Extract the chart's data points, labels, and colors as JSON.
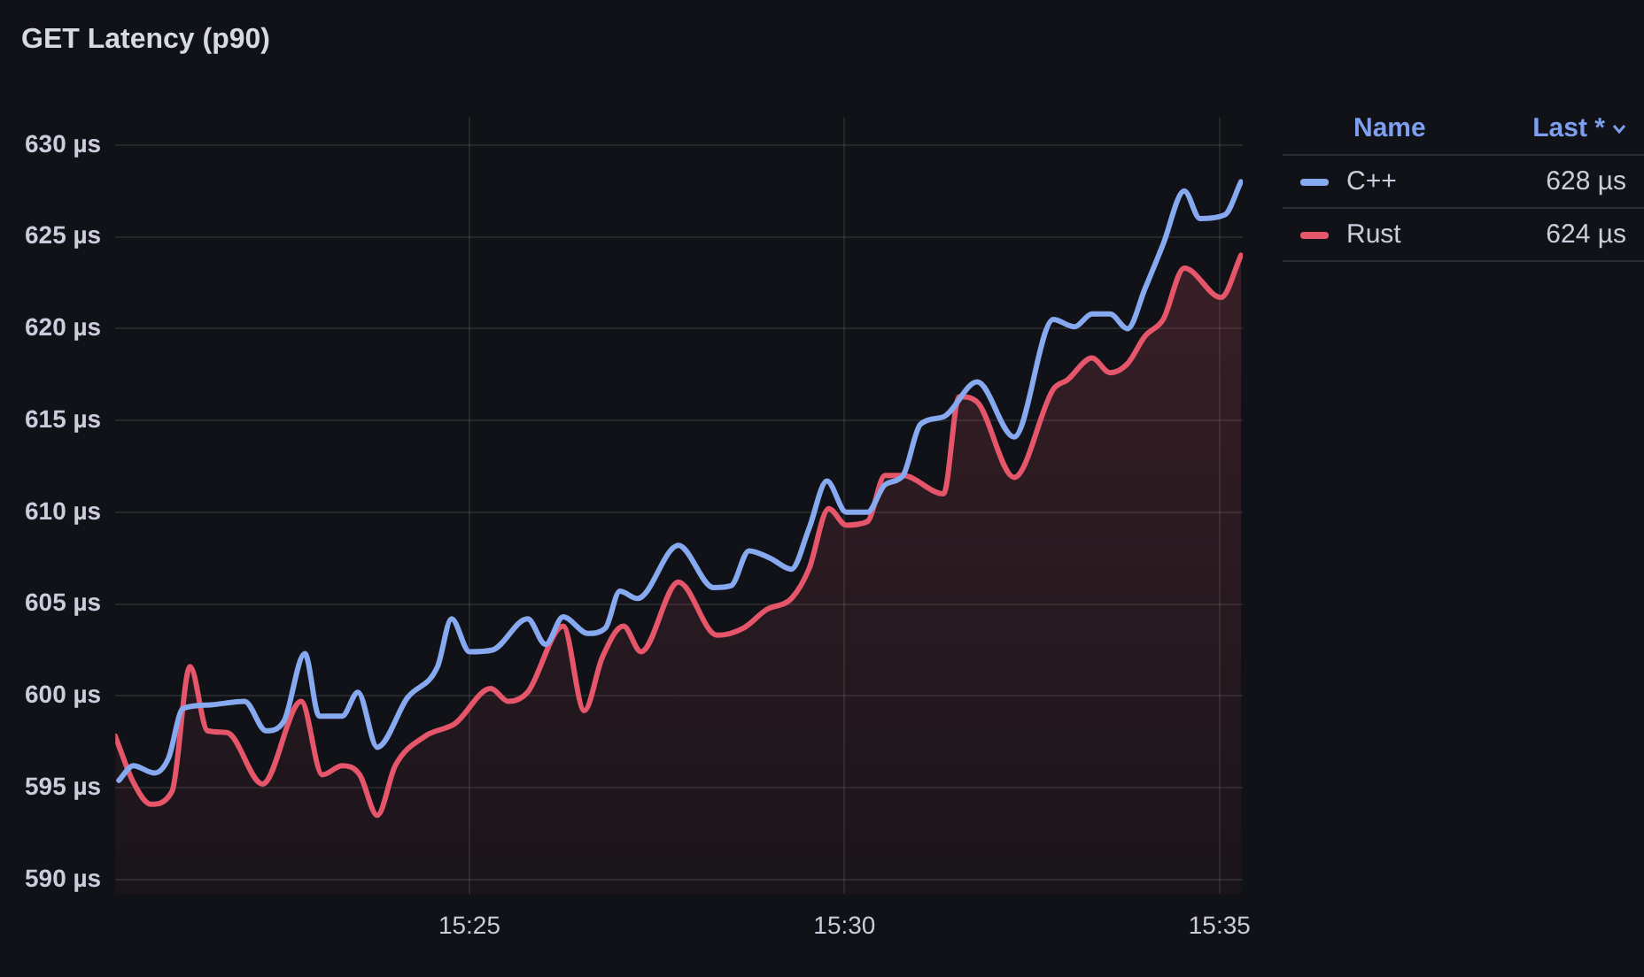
{
  "chart_data": {
    "type": "area",
    "title": "GET Latency (p90)",
    "xlim": [
      15.338,
      15.5885
    ],
    "xticks": [
      {
        "value": 15.416667,
        "label": "15:25"
      },
      {
        "value": 15.5,
        "label": "15:30"
      },
      {
        "value": 15.583333,
        "label": "15:35"
      }
    ],
    "ylim": [
      589.2,
      631.5
    ],
    "yticks": [
      {
        "value": 590,
        "label": "590 µs"
      },
      {
        "value": 595,
        "label": "595 µs"
      },
      {
        "value": 600,
        "label": "600 µs"
      },
      {
        "value": 605,
        "label": "605 µs"
      },
      {
        "value": 610,
        "label": "610 µs"
      },
      {
        "value": 615,
        "label": "615 µs"
      },
      {
        "value": 620,
        "label": "620 µs"
      },
      {
        "value": 625,
        "label": "625 µs"
      },
      {
        "value": 630,
        "label": "630 µs"
      }
    ],
    "grid": true,
    "legend": "right",
    "marker": "none",
    "line_style": "solid",
    "annotations": [
      "Name",
      "Last *",
      "628 µs",
      "624 µs"
    ],
    "series": [
      {
        "name": "C++",
        "type": "line",
        "color": "#86a9f0",
        "x": [
          15.3388,
          15.342,
          15.3467,
          15.3498,
          15.353,
          15.3585,
          15.3667,
          15.3715,
          15.3754,
          15.3801,
          15.3833,
          15.3884,
          15.3919,
          15.3962,
          15.4029,
          15.4096,
          15.4127,
          15.4167,
          15.4218,
          15.4296,
          15.4336,
          15.4375,
          15.443,
          15.4469,
          15.4501,
          15.454,
          15.4631,
          15.4709,
          15.4748,
          15.4788,
          15.4835,
          15.4882,
          15.4921,
          15.4961,
          15.5004,
          15.5051,
          15.509,
          15.513,
          15.5169,
          15.522,
          15.5295,
          15.5377,
          15.5464,
          15.5511,
          15.555,
          15.559,
          15.5629,
          15.5668,
          15.5708,
          15.5755,
          15.579,
          15.5845,
          15.5881
        ],
        "values": [
          595.4,
          596.2,
          595.8,
          596.6,
          599.3,
          599.5,
          599.7,
          598.1,
          598.6,
          602.3,
          598.9,
          598.9,
          600.2,
          597.2,
          599.9,
          601.6,
          604.2,
          602.4,
          602.5,
          604.2,
          602.8,
          604.3,
          603.4,
          603.7,
          605.7,
          605.3,
          608.2,
          605.9,
          606.0,
          607.9,
          607.5,
          606.9,
          609.1,
          611.7,
          610.0,
          610.0,
          611.5,
          612.0,
          614.8,
          615.2,
          617.1,
          614.1,
          620.5,
          620.1,
          620.8,
          620.8,
          620.0,
          622.2,
          624.6,
          627.5,
          626.0,
          626.2,
          628
        ]
      },
      {
        "name": "Rust",
        "color": "#e5566a",
        "x": [
          15.338,
          15.342,
          15.3459,
          15.3506,
          15.3546,
          15.3585,
          15.3628,
          15.3707,
          15.3793,
          15.384,
          15.3884,
          15.3923,
          15.3962,
          15.4002,
          15.4068,
          15.4135,
          15.4214,
          15.4253,
          15.4296,
          15.4375,
          15.4422,
          15.4462,
          15.4509,
          15.4548,
          15.4631,
          15.4717,
          15.4776,
          15.4827,
          15.4882,
          15.4921,
          15.4965,
          15.5004,
          15.5051,
          15.509,
          15.513,
          15.522,
          15.5255,
          15.5295,
          15.5377,
          15.5464,
          15.5495,
          15.555,
          15.559,
          15.5629,
          15.5668,
          15.5708,
          15.5755,
          15.5837,
          15.5881
        ],
        "values": [
          597.8,
          595.3,
          594.1,
          594.8,
          601.6,
          598.1,
          598.0,
          595.2,
          599.7,
          595.7,
          596.2,
          595.7,
          593.5,
          596.2,
          597.8,
          598.5,
          600.4,
          599.7,
          600.2,
          603.8,
          599.2,
          602.1,
          603.8,
          602.4,
          606.2,
          603.3,
          603.7,
          604.7,
          605.3,
          606.9,
          610.2,
          609.3,
          609.5,
          612.0,
          612.0,
          611.0,
          616.3,
          616.0,
          611.9,
          616.7,
          617.2,
          618.4,
          617.6,
          618.1,
          619.6,
          620.5,
          623.3,
          621.7,
          624
        ]
      }
    ]
  }
}
